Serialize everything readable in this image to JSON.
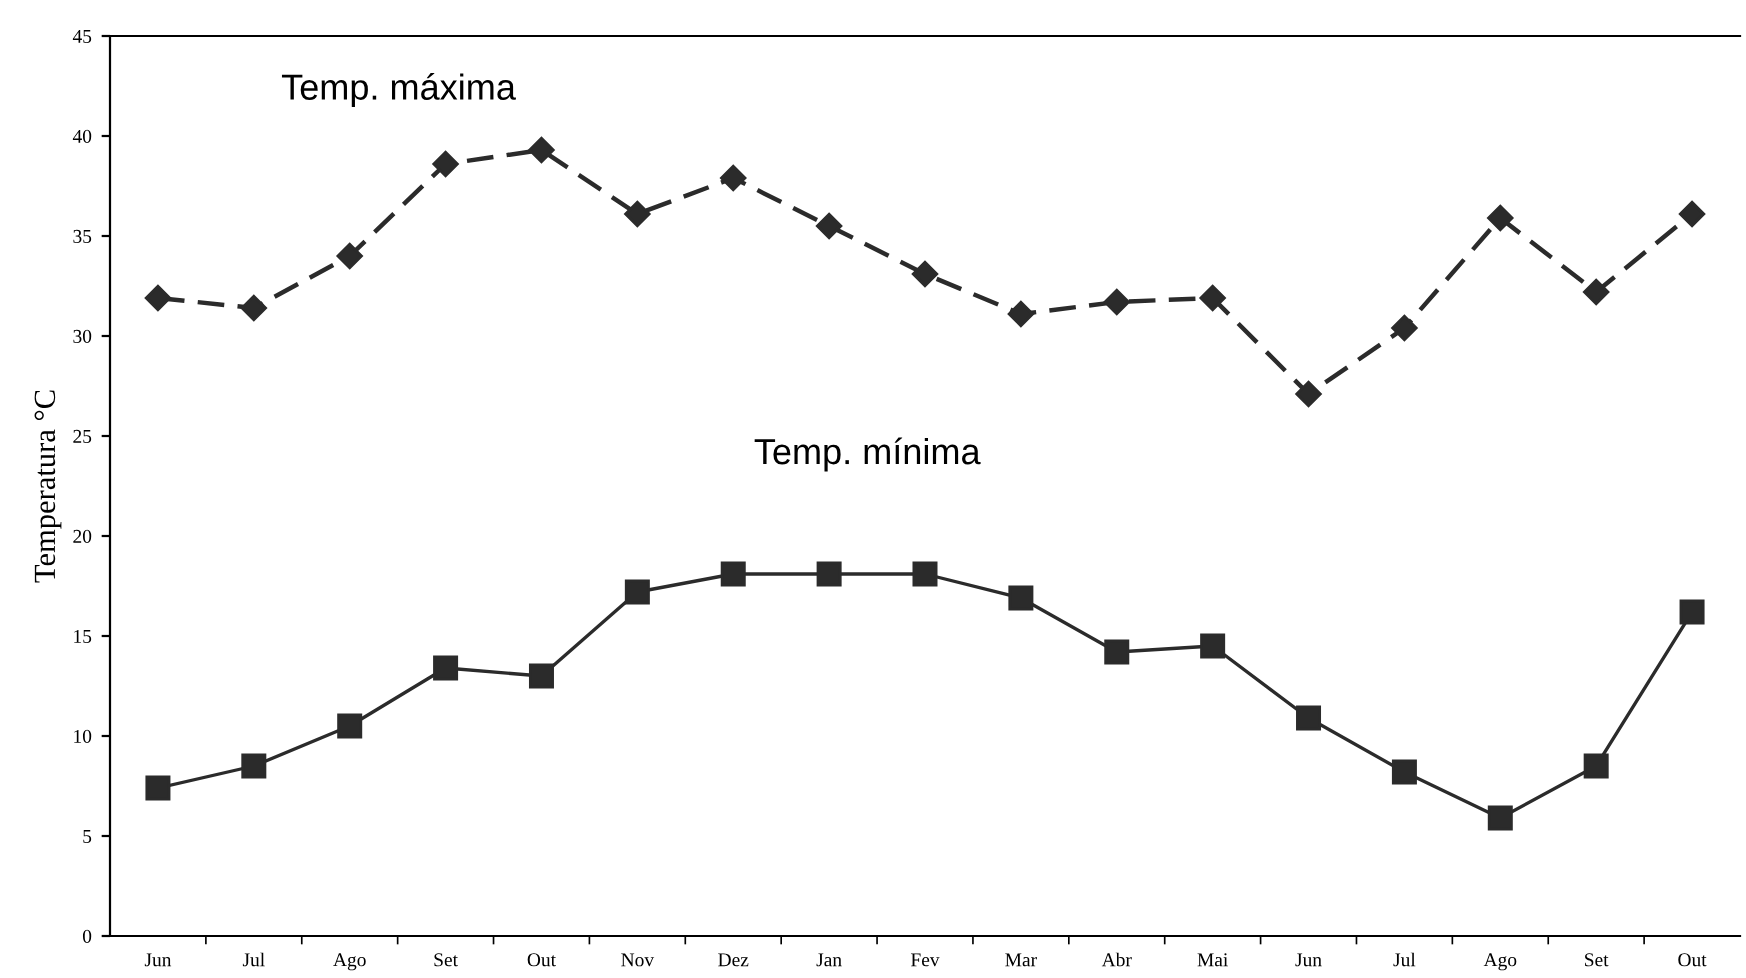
{
  "chart_data": {
    "type": "line",
    "ylabel": "Temperatura °C",
    "categories": [
      "Jun",
      "Jul",
      "Ago",
      "Set",
      "Out",
      "Nov",
      "Dez",
      "Jan",
      "Fev",
      "Mar",
      "Abr",
      "Mai",
      "Jun",
      "Jul",
      "Ago",
      "Set",
      "Out"
    ],
    "series": [
      {
        "name": "Temp. máxima",
        "color": "#2b2b2b",
        "marker": "diamond",
        "line_style": "dashed",
        "values": [
          31.9,
          31.4,
          34.0,
          38.6,
          39.3,
          36.1,
          37.9,
          35.5,
          33.1,
          31.1,
          31.7,
          31.9,
          27.1,
          30.4,
          35.9,
          32.2,
          36.1
        ]
      },
      {
        "name": "Temp. mínima",
        "color": "#2b2b2b",
        "marker": "square",
        "line_style": "solid",
        "values": [
          7.4,
          8.5,
          10.5,
          13.4,
          13.0,
          17.2,
          18.1,
          18.1,
          18.1,
          16.9,
          14.2,
          14.5,
          10.9,
          8.2,
          5.9,
          8.5,
          16.2
        ]
      }
    ],
    "ylim": [
      0,
      45
    ],
    "yticks": [
      0,
      5,
      10,
      15,
      20,
      25,
      30,
      35,
      40,
      45
    ],
    "grid": false,
    "legend": false
  }
}
